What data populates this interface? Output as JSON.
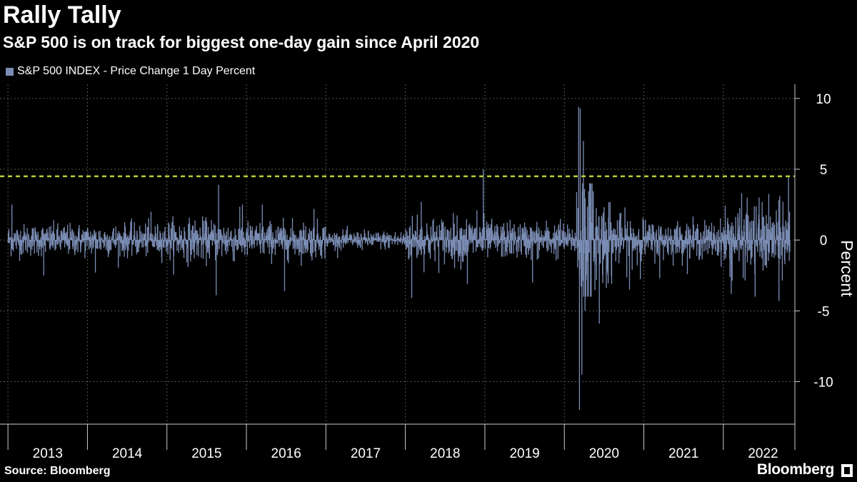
{
  "title": "Rally Tally",
  "subtitle": "S&P 500 is on track for biggest one-day gain since April 2020",
  "footer": {
    "source": "Source: Bloomberg",
    "brand": "Bloomberg",
    "brand_icon": "bloomberg-terminal-icon"
  },
  "colors": {
    "series": "#7b8db4",
    "reference": "#b5d334",
    "grid": "#555555",
    "background": "#000000",
    "text": "#ffffff"
  },
  "chart_data": {
    "type": "bar",
    "title": "Rally Tally",
    "subtitle": "S&P 500 is on track for biggest one-day gain since April 2020",
    "legend": "S&P 500 INDEX - Price Change 1 Day Percent",
    "legend_position": "top-left",
    "xlabel": "",
    "ylabel": "Percent",
    "ylim": [
      -13,
      11
    ],
    "yticks": [
      10,
      5,
      0,
      -5,
      -10
    ],
    "ytick_labels": [
      "10",
      "5",
      "0",
      "-5",
      "-10"
    ],
    "x_categories": [
      "2013",
      "2014",
      "2015",
      "2016",
      "2017",
      "2018",
      "2019",
      "2020",
      "2021",
      "2022"
    ],
    "xlim": [
      2012.9,
      2022.9
    ],
    "grid": true,
    "reference_line": {
      "value": 4.5,
      "style": "dashed"
    },
    "series": [
      {
        "name": "S&P 500 INDEX - Price Change 1 Day Percent",
        "baseline_volatility_by_year": {
          "2013": 0.7,
          "2014": 0.7,
          "2015": 0.9,
          "2016": 0.8,
          "2017": 0.4,
          "2018": 1.0,
          "2019": 0.8,
          "2020": 1.7,
          "2021": 0.8,
          "2022": 1.5
        },
        "notable_values": [
          {
            "x": 2013.05,
            "y": 2.5
          },
          {
            "x": 2013.45,
            "y": -2.5
          },
          {
            "x": 2014.1,
            "y": -2.3
          },
          {
            "x": 2014.8,
            "y": 2.0
          },
          {
            "x": 2015.62,
            "y": -3.9
          },
          {
            "x": 2015.65,
            "y": 3.9
          },
          {
            "x": 2015.95,
            "y": 2.5
          },
          {
            "x": 2016.2,
            "y": 2.5
          },
          {
            "x": 2016.48,
            "y": -3.6
          },
          {
            "x": 2016.85,
            "y": 2.2
          },
          {
            "x": 2018.08,
            "y": -4.1
          },
          {
            "x": 2018.15,
            "y": 1.8
          },
          {
            "x": 2018.2,
            "y": 2.7
          },
          {
            "x": 2018.78,
            "y": -3.1
          },
          {
            "x": 2018.9,
            "y": 2.1
          },
          {
            "x": 2018.98,
            "y": 5.0
          },
          {
            "x": 2019.6,
            "y": -3.0
          },
          {
            "x": 2019.95,
            "y": 1.5
          },
          {
            "x": 2020.18,
            "y": 9.4
          },
          {
            "x": 2020.19,
            "y": -12.0
          },
          {
            "x": 2020.2,
            "y": 9.3
          },
          {
            "x": 2020.22,
            "y": -9.5
          },
          {
            "x": 2020.24,
            "y": 7.0
          },
          {
            "x": 2020.26,
            "y": -5.0
          },
          {
            "x": 2020.35,
            "y": 3.5
          },
          {
            "x": 2020.44,
            "y": -5.9
          },
          {
            "x": 2020.82,
            "y": -3.5
          },
          {
            "x": 2021.2,
            "y": -2.7
          },
          {
            "x": 2022.1,
            "y": -3.8
          },
          {
            "x": 2022.3,
            "y": 3.0
          },
          {
            "x": 2022.4,
            "y": -4.0
          },
          {
            "x": 2022.45,
            "y": 3.0
          },
          {
            "x": 2022.7,
            "y": -4.3
          },
          {
            "x": 2022.75,
            "y": 2.7
          },
          {
            "x": 2022.82,
            "y": 4.5
          }
        ]
      }
    ]
  }
}
